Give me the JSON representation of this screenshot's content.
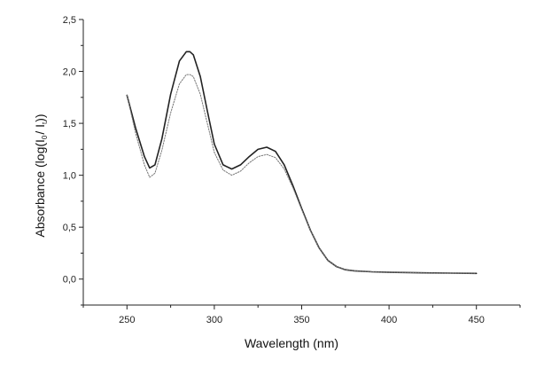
{
  "chart_data": {
    "type": "line",
    "xlabel": "Wavelength (nm)",
    "ylabel": {
      "prefix": "Absorbance (log(I",
      "sub1": "0",
      "middle": "/ I",
      "sub2": "t",
      "suffix": "))"
    },
    "xlim": [
      225,
      475
    ],
    "ylim": [
      -0.25,
      2.5
    ],
    "xticks": [
      250,
      300,
      350,
      400,
      450
    ],
    "xtick_labels": [
      "250",
      "300",
      "350",
      "400",
      "450"
    ],
    "yticks": [
      0.0,
      0.5,
      1.0,
      1.5,
      2.0,
      2.5
    ],
    "ytick_labels": [
      "0,0",
      "0,5",
      "1,0",
      "1,5",
      "2,0",
      "2,5"
    ],
    "grid": false,
    "series": [
      {
        "style": "solid",
        "color": "#222222",
        "x": [
          250,
          255,
          260,
          263,
          266,
          270,
          275,
          280,
          284,
          286,
          288,
          292,
          296,
          300,
          305,
          310,
          315,
          320,
          325,
          330,
          335,
          340,
          345,
          350,
          355,
          360,
          365,
          370,
          375,
          380,
          390,
          400,
          420,
          450
        ],
        "y": [
          1.77,
          1.45,
          1.18,
          1.07,
          1.1,
          1.35,
          1.78,
          2.1,
          2.19,
          2.19,
          2.16,
          1.95,
          1.62,
          1.3,
          1.1,
          1.06,
          1.1,
          1.18,
          1.25,
          1.27,
          1.23,
          1.1,
          0.9,
          0.68,
          0.47,
          0.3,
          0.18,
          0.12,
          0.09,
          0.08,
          0.07,
          0.065,
          0.06,
          0.055
        ]
      },
      {
        "style": "dotted",
        "color": "#777777",
        "x": [
          250,
          255,
          260,
          263,
          266,
          270,
          275,
          280,
          284,
          286,
          288,
          292,
          296,
          300,
          305,
          310,
          315,
          320,
          325,
          330,
          335,
          340,
          345,
          350,
          355,
          360,
          365,
          370,
          375,
          380,
          390,
          400,
          420,
          450
        ],
        "y": [
          1.77,
          1.4,
          1.1,
          0.98,
          1.02,
          1.24,
          1.6,
          1.88,
          1.97,
          1.97,
          1.95,
          1.78,
          1.5,
          1.22,
          1.05,
          1.0,
          1.04,
          1.12,
          1.18,
          1.2,
          1.17,
          1.06,
          0.88,
          0.67,
          0.47,
          0.3,
          0.18,
          0.12,
          0.09,
          0.08,
          0.07,
          0.065,
          0.06,
          0.055
        ]
      }
    ]
  }
}
